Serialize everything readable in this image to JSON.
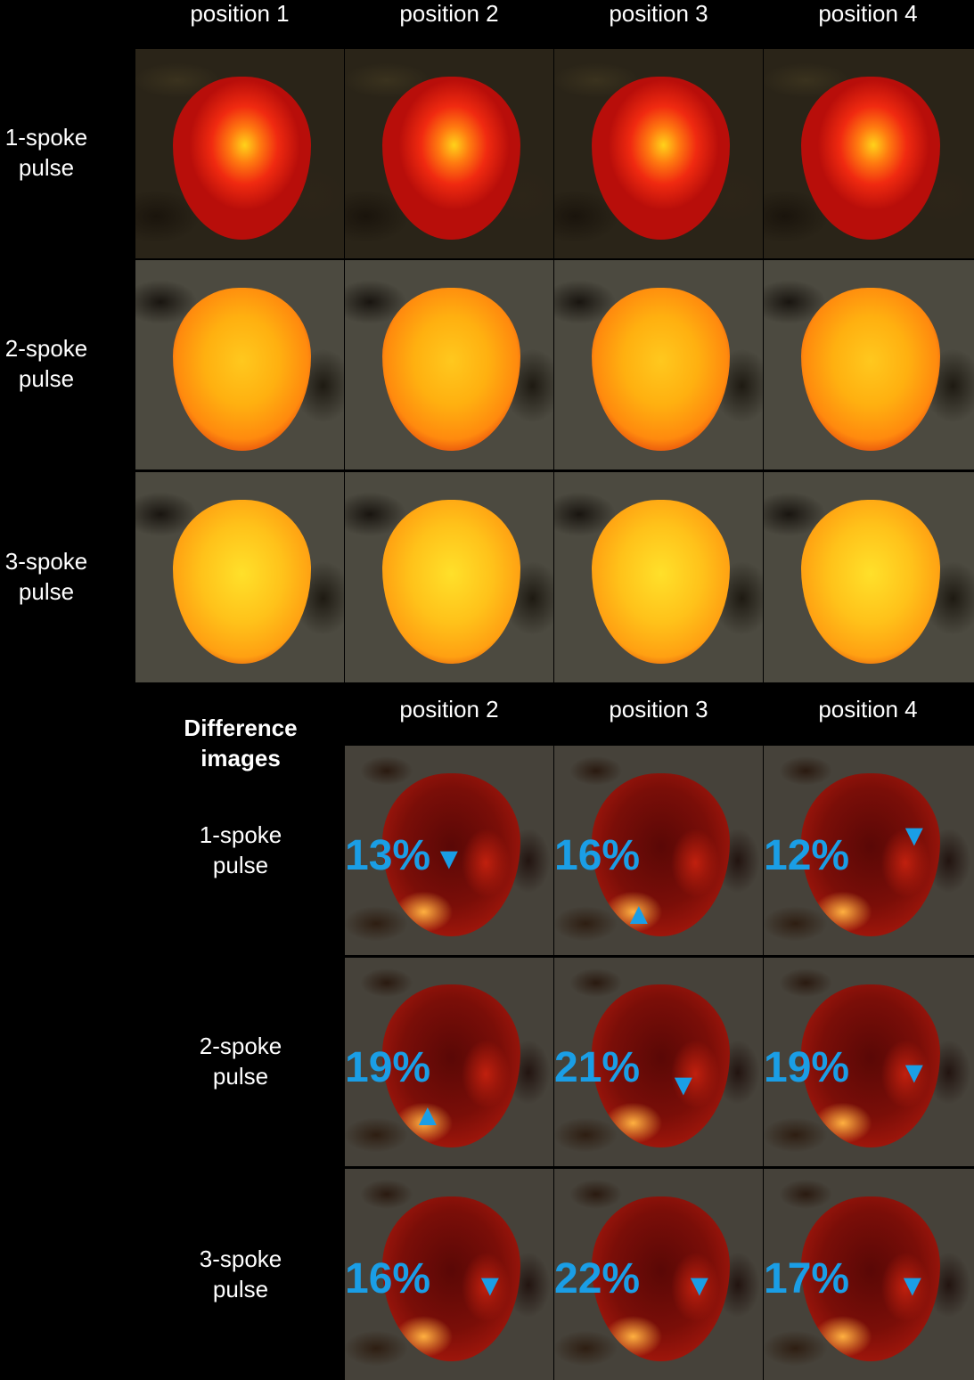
{
  "top_columns": [
    "position 1",
    "position 2",
    "position 3",
    "position 4"
  ],
  "top_rows": [
    "1-spoke\npulse",
    "2-spoke\npulse",
    "3-spoke\npulse"
  ],
  "difference_title": "Difference\nimages",
  "diff_columns": [
    "position 2",
    "position 3",
    "position 4"
  ],
  "diff_rows": [
    "1-spoke\npulse",
    "2-spoke\npulse",
    "3-spoke\npulse"
  ],
  "diff_values": [
    [
      "13%",
      "16%",
      "12%"
    ],
    [
      "19%",
      "21%",
      "19%"
    ],
    [
      "16%",
      "22%",
      "17%"
    ]
  ],
  "arrow_directions": [
    [
      "down",
      "up",
      "down"
    ],
    [
      "up",
      "down",
      "down"
    ],
    [
      "down",
      "down",
      "down"
    ]
  ],
  "colors": {
    "annotation": "#1a9ee6",
    "background": "#000000"
  }
}
